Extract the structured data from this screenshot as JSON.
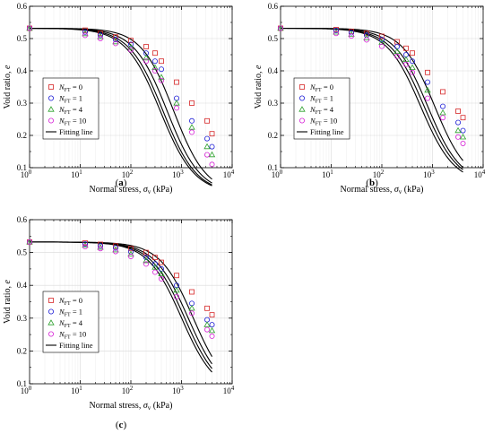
{
  "colors": {
    "nft0": "#d62728",
    "nft1": "#1f1fd6",
    "nft4": "#2ca02c",
    "nft10": "#d620d6",
    "fit": "#000000"
  },
  "legend_entries": [
    "N_FT = 0",
    "N_FT = 1",
    "N_FT = 4",
    "N_FT = 10",
    "Fitting line"
  ],
  "chart_data": [
    {
      "type": "scatter",
      "panel_label": "(a)",
      "xlabel": "Normal stress, σv (kPa)",
      "ylabel": "Void ratio, e",
      "xscale": "log",
      "xlim": [
        1,
        10000
      ],
      "ylim": [
        0.1,
        0.6
      ],
      "xticks": [
        "10^0",
        "10^1",
        "10^2",
        "10^3",
        "10^4"
      ],
      "yticks": [
        "0.1",
        "0.2",
        "0.3",
        "0.4",
        "0.5",
        "0.6"
      ],
      "grid": true,
      "legend_position": "lower-left",
      "series": [
        {
          "name": "N_FT = 0",
          "marker": "square",
          "x": [
            1,
            12.5,
            25,
            50,
            100,
            200,
            300,
            400,
            800,
            1600,
            3200,
            4000
          ],
          "y": [
            0.532,
            0.526,
            0.516,
            0.505,
            0.494,
            0.475,
            0.455,
            0.43,
            0.365,
            0.3,
            0.245,
            0.205
          ]
        },
        {
          "name": "N_FT = 1",
          "marker": "circle",
          "x": [
            1,
            12.5,
            25,
            50,
            100,
            200,
            300,
            400,
            800,
            1600,
            3200,
            4000
          ],
          "y": [
            0.532,
            0.52,
            0.51,
            0.497,
            0.482,
            0.455,
            0.43,
            0.405,
            0.315,
            0.245,
            0.19,
            0.165
          ]
        },
        {
          "name": "N_FT = 4",
          "marker": "triangle",
          "x": [
            1,
            12.5,
            25,
            50,
            100,
            200,
            300,
            400,
            800,
            1600,
            3200,
            4000
          ],
          "y": [
            0.532,
            0.515,
            0.506,
            0.49,
            0.473,
            0.44,
            0.41,
            0.38,
            0.3,
            0.225,
            0.165,
            0.14
          ]
        },
        {
          "name": "N_FT = 10",
          "marker": "circle",
          "x": [
            1,
            12.5,
            25,
            50,
            100,
            200,
            300,
            400,
            800,
            1600,
            3200,
            4000
          ],
          "y": [
            0.532,
            0.51,
            0.5,
            0.485,
            0.465,
            0.43,
            0.4,
            0.37,
            0.285,
            0.21,
            0.14,
            0.11
          ]
        }
      ],
      "fits": [
        {
          "e0": 0.532,
          "ef": 0.02,
          "p": 700,
          "n": 1.35
        },
        {
          "e0": 0.532,
          "ef": 0.02,
          "p": 520,
          "n": 1.32
        },
        {
          "e0": 0.532,
          "ef": 0.02,
          "p": 430,
          "n": 1.3
        },
        {
          "e0": 0.532,
          "ef": 0.02,
          "p": 380,
          "n": 1.28
        }
      ]
    },
    {
      "type": "scatter",
      "panel_label": "(b)",
      "xlabel": "Normal stress, σv (kPa)",
      "ylabel": "Void ratio, e",
      "xscale": "log",
      "xlim": [
        1,
        10000
      ],
      "ylim": [
        0.1,
        0.6
      ],
      "xticks": [
        "10^0",
        "10^1",
        "10^2",
        "10^3",
        "10^4"
      ],
      "yticks": [
        "0.1",
        "0.2",
        "0.3",
        "0.4",
        "0.5",
        "0.6"
      ],
      "grid": true,
      "legend_position": "lower-left",
      "series": [
        {
          "name": "N_FT = 0",
          "marker": "square",
          "x": [
            1,
            12.5,
            25,
            50,
            100,
            200,
            300,
            400,
            800,
            1600,
            3200,
            4000
          ],
          "y": [
            0.532,
            0.528,
            0.522,
            0.516,
            0.507,
            0.49,
            0.47,
            0.455,
            0.395,
            0.335,
            0.275,
            0.255
          ]
        },
        {
          "name": "N_FT = 1",
          "marker": "circle",
          "x": [
            1,
            12.5,
            25,
            50,
            100,
            200,
            300,
            400,
            800,
            1600,
            3200,
            4000
          ],
          "y": [
            0.532,
            0.525,
            0.518,
            0.51,
            0.497,
            0.475,
            0.45,
            0.43,
            0.365,
            0.29,
            0.24,
            0.215
          ]
        },
        {
          "name": "N_FT = 4",
          "marker": "triangle",
          "x": [
            1,
            12.5,
            25,
            50,
            100,
            200,
            300,
            400,
            800,
            1600,
            3200,
            4000
          ],
          "y": [
            0.532,
            0.52,
            0.513,
            0.502,
            0.488,
            0.46,
            0.435,
            0.41,
            0.34,
            0.27,
            0.215,
            0.195
          ]
        },
        {
          "name": "N_FT = 10",
          "marker": "circle",
          "x": [
            1,
            12.5,
            25,
            50,
            100,
            200,
            300,
            400,
            800,
            1600,
            3200,
            4000
          ],
          "y": [
            0.532,
            0.516,
            0.508,
            0.496,
            0.476,
            0.445,
            0.42,
            0.395,
            0.315,
            0.255,
            0.195,
            0.175
          ]
        }
      ],
      "fits": [
        {
          "e0": 0.532,
          "ef": 0.05,
          "p": 1100,
          "n": 1.35
        },
        {
          "e0": 0.532,
          "ef": 0.05,
          "p": 800,
          "n": 1.33
        },
        {
          "e0": 0.532,
          "ef": 0.05,
          "p": 680,
          "n": 1.3
        },
        {
          "e0": 0.532,
          "ef": 0.05,
          "p": 580,
          "n": 1.3
        }
      ]
    },
    {
      "type": "scatter",
      "panel_label": "(c)",
      "xlabel": "Normal stress, σv (kPa)",
      "ylabel": "Void ratio, e",
      "xscale": "log",
      "xlim": [
        1,
        10000
      ],
      "ylim": [
        0.1,
        0.6
      ],
      "xticks": [
        "10^0",
        "10^1",
        "10^2",
        "10^3",
        "10^4"
      ],
      "yticks": [
        "0.1",
        "0.2",
        "0.3",
        "0.4",
        "0.5",
        "0.6"
      ],
      "grid": true,
      "legend_position": "lower-left",
      "series": [
        {
          "name": "N_FT = 0",
          "marker": "square",
          "x": [
            1,
            12.5,
            25,
            50,
            100,
            200,
            300,
            400,
            800,
            1600,
            3200,
            4000
          ],
          "y": [
            0.532,
            0.529,
            0.525,
            0.52,
            0.512,
            0.5,
            0.485,
            0.47,
            0.43,
            0.38,
            0.33,
            0.31
          ]
        },
        {
          "name": "N_FT = 1",
          "marker": "circle",
          "x": [
            1,
            12.5,
            25,
            50,
            100,
            200,
            300,
            400,
            800,
            1600,
            3200,
            4000
          ],
          "y": [
            0.532,
            0.526,
            0.52,
            0.514,
            0.502,
            0.485,
            0.465,
            0.45,
            0.4,
            0.345,
            0.295,
            0.28
          ]
        },
        {
          "name": "N_FT = 4",
          "marker": "triangle",
          "x": [
            1,
            12.5,
            25,
            50,
            100,
            200,
            300,
            400,
            800,
            1600,
            3200,
            4000
          ],
          "y": [
            0.532,
            0.522,
            0.516,
            0.508,
            0.495,
            0.475,
            0.455,
            0.435,
            0.385,
            0.33,
            0.28,
            0.262
          ]
        },
        {
          "name": "N_FT = 10",
          "marker": "circle",
          "x": [
            1,
            12.5,
            25,
            50,
            100,
            200,
            300,
            400,
            800,
            1600,
            3200,
            4000
          ],
          "y": [
            0.532,
            0.518,
            0.512,
            0.503,
            0.488,
            0.465,
            0.44,
            0.42,
            0.365,
            0.315,
            0.265,
            0.245
          ]
        }
      ],
      "fits": [
        {
          "e0": 0.532,
          "ef": 0.07,
          "p": 1700,
          "n": 1.32
        },
        {
          "e0": 0.532,
          "ef": 0.07,
          "p": 1350,
          "n": 1.3
        },
        {
          "e0": 0.532,
          "ef": 0.07,
          "p": 1150,
          "n": 1.3
        },
        {
          "e0": 0.532,
          "ef": 0.07,
          "p": 1000,
          "n": 1.3
        }
      ]
    }
  ]
}
